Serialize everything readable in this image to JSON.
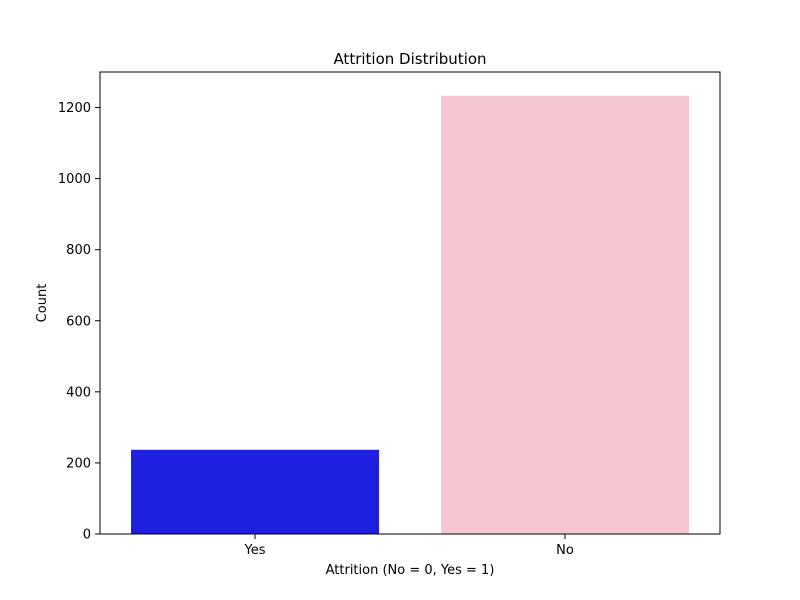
{
  "chart_data": {
    "type": "bar",
    "title": "Attrition Distribution",
    "xlabel": "Attrition (No = 0, Yes = 1)",
    "ylabel": "Count",
    "categories": [
      "Yes",
      "No"
    ],
    "values": [
      237,
      1233
    ],
    "colors": [
      "#1f1fe0",
      "#f6c6d0"
    ],
    "ylim": [
      0,
      1300
    ],
    "yticks": [
      0,
      200,
      400,
      600,
      800,
      1000,
      1200
    ],
    "grid": false,
    "legend": "none"
  }
}
